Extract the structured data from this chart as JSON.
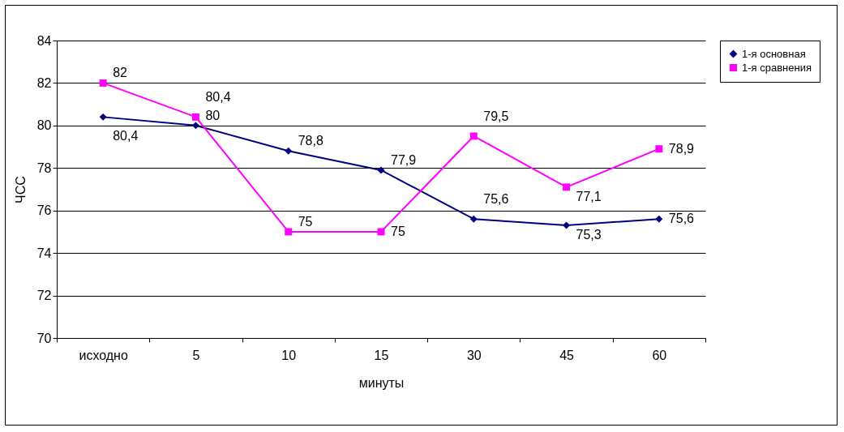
{
  "chart_data": {
    "type": "line",
    "xlabel": "минуты",
    "ylabel": "ЧСС",
    "categories": [
      "исходно",
      "5",
      "10",
      "15",
      "30",
      "45",
      "60"
    ],
    "series": [
      {
        "name": "1-я основная",
        "color": "#000080",
        "marker": "diamond",
        "values": [
          80.4,
          80,
          78.8,
          77.9,
          75.6,
          75.3,
          75.6
        ],
        "value_labels": [
          "80,4",
          "80",
          "78,8",
          "77,9",
          "75,6",
          "75,3",
          "75,6"
        ]
      },
      {
        "name": "1-я сравнения",
        "color": "#ff00ff",
        "marker": "square",
        "values": [
          82,
          80.4,
          75,
          75,
          79.5,
          77.1,
          78.9
        ],
        "value_labels": [
          "82",
          "80,4",
          "75",
          "75",
          "79,5",
          "77,1",
          "78,9"
        ]
      }
    ],
    "ylim": [
      70,
      84
    ],
    "yticks": [
      70,
      72,
      74,
      76,
      78,
      80,
      82,
      84
    ],
    "grid": "y",
    "legend": "right"
  }
}
